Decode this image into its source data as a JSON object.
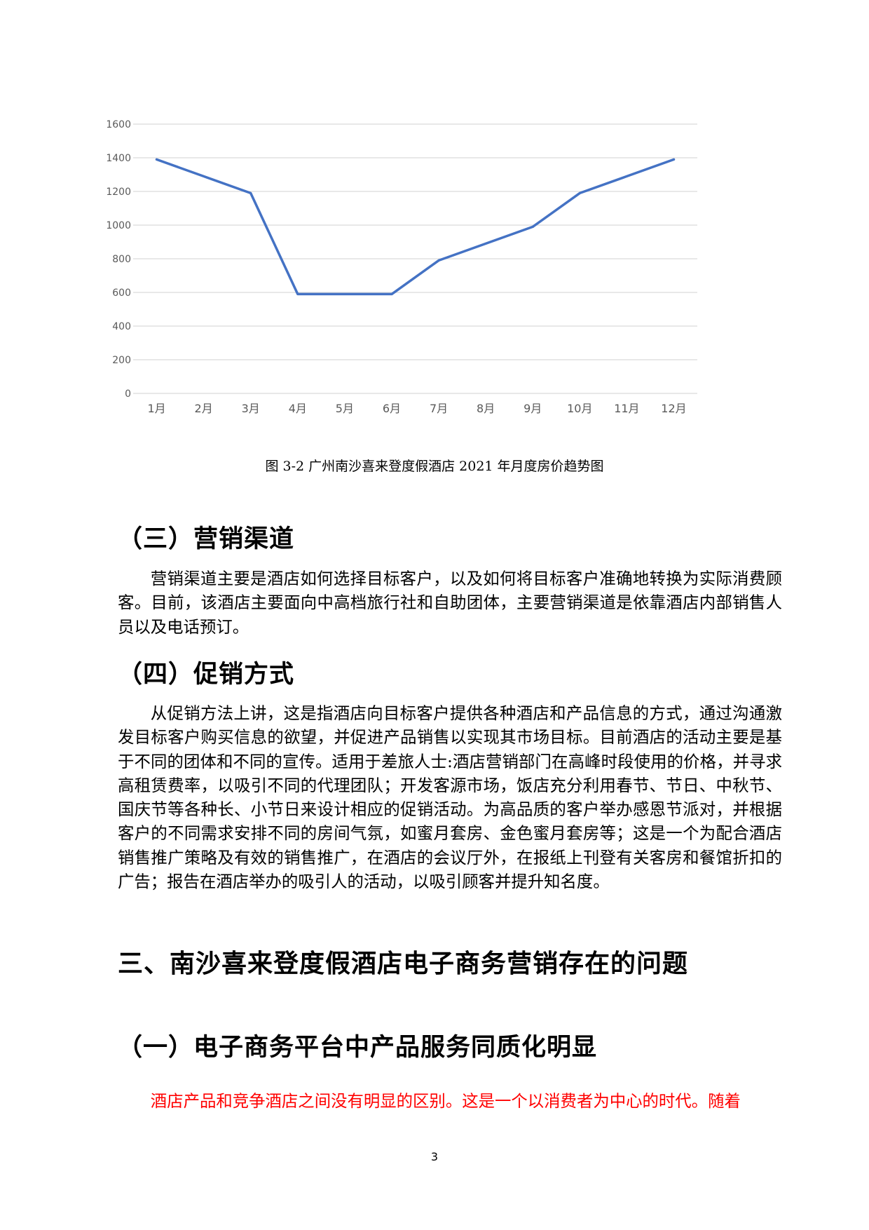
{
  "chart_data": {
    "type": "line",
    "categories": [
      "1月",
      "2月",
      "3月",
      "4月",
      "5月",
      "6月",
      "7月",
      "8月",
      "9月",
      "10月",
      "11月",
      "12月"
    ],
    "series": [
      {
        "values": [
          1390,
          1290,
          1190,
          590,
          590,
          590,
          790,
          890,
          990,
          1190,
          1290,
          1390
        ],
        "color": "#4472c4"
      }
    ],
    "ylim": [
      0,
      1600
    ],
    "yticks": [
      0,
      200,
      400,
      600,
      800,
      1000,
      1200,
      1400,
      1600
    ],
    "grid": true,
    "legend": "none"
  },
  "caption": "图 3-2 广州南沙喜来登度假酒店 2021 年月度房价趋势图",
  "sections": {
    "s3_heading": "（三）营销渠道",
    "s3_text": "营销渠道主要是酒店如何选择目标客户，以及如何将目标客户准确地转换为实际消费顾客。目前，该酒店主要面向中高档旅行社和自助团体，主要营销渠道是依靠酒店内部销售人员以及电话预订。",
    "s4_heading": "（四）促销方式",
    "s4_text": "从促销方法上讲，这是指酒店向目标客户提供各种酒店和产品信息的方式，通过沟通激发目标客户购买信息的欲望，并促进产品销售以实现其市场目标。目前酒店的活动主要是基于不同的团体和不同的宣传。适用于差旅人士:酒店营销部门在高峰时段使用的价格，并寻求高租赁费率，以吸引不同的代理团队；开发客源市场，饭店充分利用春节、节日、中秋节、国庆节等各种长、小节日来设计相应的促销活动。为高品质的客户举办感恩节派对，并根据客户的不同需求安排不同的房间气氛，如蜜月套房、金色蜜月套房等；这是一个为配合酒店销售推广策略及有效的销售推广，在酒店的会议厅外，在报纸上刊登有关客房和餐馆折扣的广告；报告在酒店举办的吸引人的活动，以吸引顾客并提升知名度。",
    "chapter_heading": "三、南沙喜来登度假酒店电子商务营销存在的问题",
    "c1_heading": "（一）电子商务平台中产品服务同质化明显",
    "c1_text": "酒店产品和竞争酒店之间没有明显的区别。这是一个以消费者为中心的时代。随着"
  },
  "page_number": "3"
}
